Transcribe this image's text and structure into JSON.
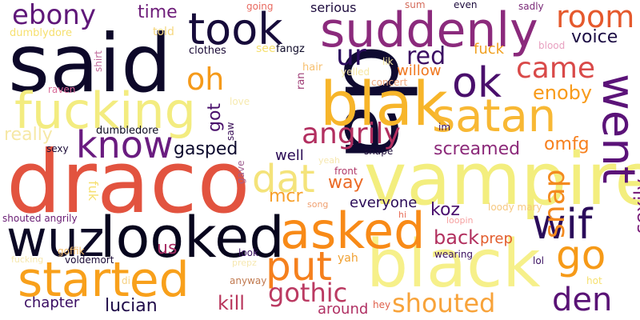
{
  "words": [
    {
      "id": "draco",
      "text": "draco",
      "color": "#e2533f"
    },
    {
      "id": "vampire",
      "text": "vampire",
      "color": "#f3ee7e"
    },
    {
      "id": "said",
      "text": "said",
      "color": "#0d0829"
    },
    {
      "id": "da",
      "text": "da",
      "color": "#0f0a30"
    },
    {
      "id": "looked",
      "text": "looked",
      "color": "#07051d"
    },
    {
      "id": "black",
      "text": "black",
      "color": "#f6f08a"
    },
    {
      "id": "blak",
      "text": "blak",
      "color": "#f7b52a"
    },
    {
      "id": "suddenly",
      "text": "suddenly",
      "color": "#8b2a7c"
    },
    {
      "id": "fucking",
      "text": "fucking",
      "color": "#f3ec80"
    },
    {
      "id": "wuz",
      "text": "wuz",
      "color": "#0b0825"
    },
    {
      "id": "started",
      "text": "started",
      "color": "#f8a01b"
    },
    {
      "id": "asked",
      "text": "asked",
      "color": "#f88a17"
    },
    {
      "id": "satan",
      "text": "satan",
      "color": "#f8b834"
    },
    {
      "id": "took",
      "text": "took",
      "color": "#160b3a"
    },
    {
      "id": "went",
      "text": "went",
      "color": "#5b1378"
    },
    {
      "id": "know",
      "text": "know",
      "color": "#6a1c80"
    },
    {
      "id": "ok",
      "text": "ok",
      "color": "#4a0f6c"
    },
    {
      "id": "put",
      "text": "put",
      "color": "#f5801d"
    },
    {
      "id": "dat",
      "text": "dat",
      "color": "#f4e37a"
    },
    {
      "id": "wif",
      "text": "wif",
      "color": "#2a0c5a"
    },
    {
      "id": "go",
      "text": "go",
      "color": "#f69a18"
    },
    {
      "id": "gothic",
      "text": "gothic",
      "color": "#bb3a62"
    },
    {
      "id": "shouted",
      "text": "shouted",
      "color": "#f8a33a"
    },
    {
      "id": "angrily",
      "text": "angrily",
      "color": "#b22f60"
    },
    {
      "id": "room",
      "text": "room",
      "color": "#e5592d"
    },
    {
      "id": "den",
      "text": "den",
      "color": "#591275"
    },
    {
      "id": "ebony",
      "text": "ebony",
      "color": "#5f1779"
    },
    {
      "id": "snap",
      "text": "snap",
      "color": "#f38a1f"
    },
    {
      "id": "oh",
      "text": "oh",
      "color": "#f59a1a"
    },
    {
      "id": "came",
      "text": "came",
      "color": "#d94a49"
    },
    {
      "id": "ur",
      "text": "ur",
      "color": "#2b0a5e"
    },
    {
      "id": "red",
      "text": "red",
      "color": "#3b0e62"
    },
    {
      "id": "enoby",
      "text": "enoby",
      "color": "#f89b1a"
    },
    {
      "id": "sexily",
      "text": "sexily",
      "color": "#7a1f7a"
    },
    {
      "id": "voice",
      "text": "voice",
      "color": "#1c0d44"
    },
    {
      "id": "screamed",
      "text": "screamed",
      "color": "#8c2a7a"
    },
    {
      "id": "gasped",
      "text": "gasped",
      "color": "#0d0a2e"
    },
    {
      "id": "omfg",
      "text": "omfg",
      "color": "#f7801e"
    },
    {
      "id": "time",
      "text": "time",
      "color": "#6e1e7a"
    },
    {
      "id": "back",
      "text": "back",
      "color": "#b2305f"
    },
    {
      "id": "kill",
      "text": "kill",
      "color": "#b8355b"
    },
    {
      "id": "lucian",
      "text": "lucian",
      "color": "#200c4a"
    },
    {
      "id": "chapter",
      "text": "chapter",
      "color": "#3a0d62"
    },
    {
      "id": "mcr",
      "text": "mcr",
      "color": "#f7a02a"
    },
    {
      "id": "way",
      "text": "way",
      "color": "#eb6a26"
    },
    {
      "id": "koz",
      "text": "koz",
      "color": "#4a0f6e"
    },
    {
      "id": "everyone",
      "text": "everyone",
      "color": "#2b0c58"
    },
    {
      "id": "us",
      "text": "us",
      "color": "#a82d64"
    },
    {
      "id": "got",
      "text": "got",
      "color": "#4a106c"
    },
    {
      "id": "really",
      "text": "really",
      "color": "#f6e8a6"
    },
    {
      "id": "well",
      "text": "well",
      "color": "#2a0a54"
    },
    {
      "id": "around",
      "text": "around",
      "color": "#b03063"
    },
    {
      "id": "prep",
      "text": "prep",
      "color": "#e25c2c"
    },
    {
      "id": "fuck",
      "text": "fuck",
      "color": "#f0a020"
    },
    {
      "id": "willow",
      "text": "willow",
      "color": "#f07820"
    },
    {
      "id": "serious",
      "text": "serious",
      "color": "#1e0c3e"
    },
    {
      "id": "fuk",
      "text": "fuk",
      "color": "#f6e070"
    },
    {
      "id": "dumbledore",
      "text": "dumbledore",
      "color": "#0c0a22"
    },
    {
      "id": "clothes",
      "text": "clothes",
      "color": "#1a0a36"
    },
    {
      "id": "dumblydore",
      "text": "dumblydore",
      "color": "#f6e070"
    },
    {
      "id": "told",
      "text": "told",
      "color": "#f6d880"
    },
    {
      "id": "see",
      "text": "see",
      "color": "#f6e070"
    },
    {
      "id": "fangz",
      "text": "fangz",
      "color": "#0e0a28"
    },
    {
      "id": "going",
      "text": "going",
      "color": "#e86a60"
    },
    {
      "id": "sum",
      "text": "sum",
      "color": "#d46c5c"
    },
    {
      "id": "even",
      "text": "even",
      "color": "#1e0c3e"
    },
    {
      "id": "sadly",
      "text": "sadly",
      "color": "#7a2a78"
    },
    {
      "id": "lik",
      "text": "lik",
      "color": "#f6e8a0"
    },
    {
      "id": "blood",
      "text": "blood",
      "color": "#e8a0c0"
    },
    {
      "id": "shirt",
      "text": "shirt",
      "color": "#c06a9a"
    },
    {
      "id": "raven",
      "text": "raven",
      "color": "#d86a98"
    },
    {
      "id": "hair",
      "text": "hair",
      "color": "#f7c070"
    },
    {
      "id": "ran",
      "text": "ran",
      "color": "#a04078"
    },
    {
      "id": "yelled",
      "text": "yelled",
      "color": "#f6e8a6"
    },
    {
      "id": "concert",
      "text": "concert",
      "color": "#f0a880"
    },
    {
      "id": "love",
      "text": "love",
      "color": "#f6eab0"
    },
    {
      "id": "im",
      "text": "im",
      "color": "#3a0e5a"
    },
    {
      "id": "saw",
      "text": "saw",
      "color": "#3a1058"
    },
    {
      "id": "sexy",
      "text": "sexy",
      "color": "#1a0a36"
    },
    {
      "id": "snape",
      "text": "snape",
      "color": "#1a0a36"
    },
    {
      "id": "front",
      "text": "front",
      "color": "#b03a6a"
    },
    {
      "id": "yeah",
      "text": "yeah",
      "color": "#f6e8b0"
    },
    {
      "id": "gave",
      "text": "gave",
      "color": "#a06090"
    },
    {
      "id": "loody_mary",
      "text": "loody mary",
      "color": "#f6c880"
    },
    {
      "id": "shouted_angrily",
      "text": "shouted angrily",
      "color": "#6a1e74"
    },
    {
      "id": "song",
      "text": "song",
      "color": "#f0a070"
    },
    {
      "id": "hi",
      "text": "hi",
      "color": "#e8705a"
    },
    {
      "id": "loopin",
      "text": "loopin",
      "color": "#f6a0a0"
    },
    {
      "id": "goffik",
      "text": "goffik",
      "color": "#f6c070"
    },
    {
      "id": "look",
      "text": "look",
      "color": "#3a1060"
    },
    {
      "id": "prepz",
      "text": "prepz",
      "color": "#f6e8b0"
    },
    {
      "id": "wearing",
      "text": "wearing",
      "color": "#3a1060"
    },
    {
      "id": "fucking_small",
      "text": "fucking",
      "color": "#f6e8b0"
    },
    {
      "id": "voldemort",
      "text": "voldemort",
      "color": "#1a0a36"
    },
    {
      "id": "yah",
      "text": "yah",
      "color": "#f0a030"
    },
    {
      "id": "lol",
      "text": "lol",
      "color": "#3a1060"
    },
    {
      "id": "di",
      "text": "di",
      "color": "#f6d080"
    },
    {
      "id": "anyway",
      "text": "anyway",
      "color": "#c07a50"
    },
    {
      "id": "hey",
      "text": "hey",
      "color": "#e0604a"
    },
    {
      "id": "hot",
      "text": "hot",
      "color": "#f6e070"
    }
  ]
}
